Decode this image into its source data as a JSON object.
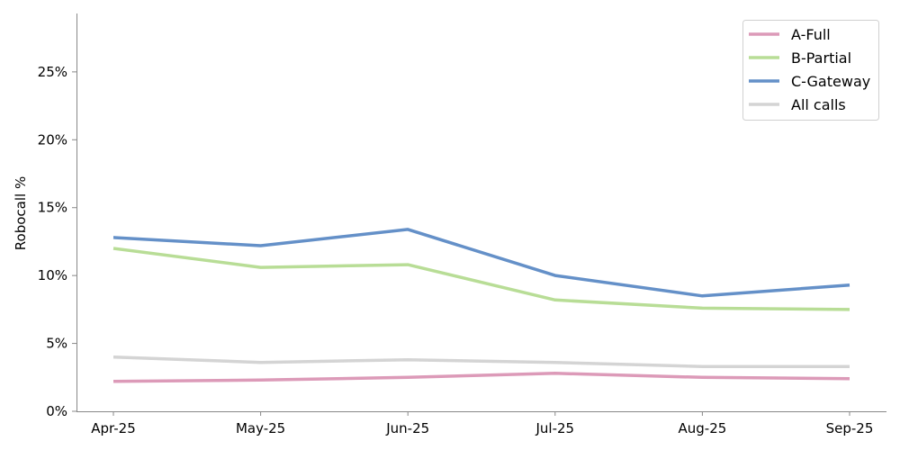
{
  "chart_data": {
    "type": "line",
    "title": "",
    "xlabel": "",
    "ylabel": "Robocall %",
    "categories": [
      "Apr-25",
      "May-25",
      "Jun-25",
      "Jul-25",
      "Aug-25",
      "Sep-25"
    ],
    "ylim": [
      0,
      0.293
    ],
    "yticks": [
      {
        "value": 0,
        "label": "0%"
      },
      {
        "value": 0.05,
        "label": "5%"
      },
      {
        "value": 0.1,
        "label": "10%"
      },
      {
        "value": 0.15,
        "label": "15%"
      },
      {
        "value": 0.2,
        "label": "20%"
      },
      {
        "value": 0.25,
        "label": "25%"
      }
    ],
    "grid": false,
    "legend_position": "top-right",
    "series": [
      {
        "name": "A-Full",
        "color": "#dc9ab8",
        "values": [
          0.022,
          0.023,
          0.025,
          0.028,
          0.025,
          0.024
        ]
      },
      {
        "name": "B-Partial",
        "color": "#b8dd96",
        "values": [
          0.12,
          0.106,
          0.108,
          0.082,
          0.076,
          0.075
        ]
      },
      {
        "name": "C-Gateway",
        "color": "#6490c8",
        "values": [
          0.128,
          0.122,
          0.134,
          0.1,
          0.085,
          0.093
        ]
      },
      {
        "name": "All calls",
        "color": "#d4d4d4",
        "values": [
          0.04,
          0.036,
          0.038,
          0.036,
          0.033,
          0.033
        ]
      }
    ]
  }
}
